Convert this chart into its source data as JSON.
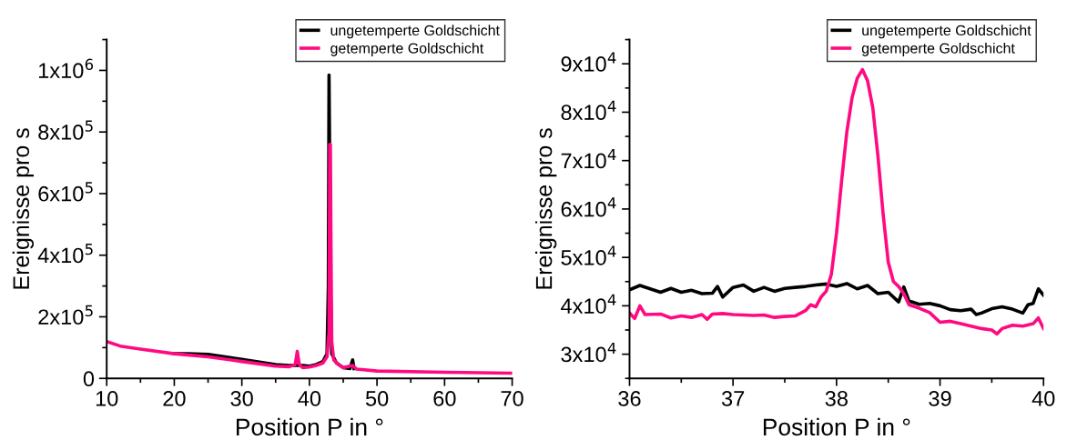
{
  "chart_data": [
    {
      "type": "line",
      "xlabel": "Position P in °",
      "ylabel": "Ereignisse pro s",
      "xlim": [
        10,
        70
      ],
      "xticks": [
        10,
        20,
        30,
        40,
        50,
        60,
        70
      ],
      "ylim": [
        0,
        1100000
      ],
      "yticks": [
        0,
        {
          "value": 200000,
          "label": "2x10$^{5}$"
        },
        {
          "value": 400000,
          "label": "4x10$^{5}$"
        },
        {
          "value": 600000,
          "label": "6x10$^{5}$"
        },
        {
          "value": 800000,
          "label": "8x10$^{5}$"
        },
        {
          "value": 1000000,
          "label": "1x10$^{6}$"
        }
      ],
      "legend": "top right",
      "grid": false,
      "marker": "none",
      "line_style": "solid",
      "series": [
        {
          "name": "ungetemperte Goldschicht",
          "color": "#000000",
          "x": [
            20,
            22,
            25,
            30,
            35,
            37,
            38,
            39,
            40,
            41,
            42,
            42.6,
            42.8,
            42.9,
            43.0,
            43.1,
            43.3,
            44,
            45,
            46,
            46.4,
            46.6
          ],
          "values": [
            80000,
            80000,
            78000,
            62000,
            45000,
            42000,
            43000,
            42000,
            40000,
            45000,
            55000,
            80000,
            300000,
            985000,
            700000,
            300000,
            80000,
            50000,
            35000,
            32000,
            60000,
            32000
          ]
        },
        {
          "name": "getemperte Goldschicht",
          "color": "#ff0a80",
          "x": [
            10,
            12,
            15,
            20,
            25,
            30,
            35,
            37,
            37.9,
            38.2,
            38.5,
            39,
            40,
            41,
            42,
            42.6,
            42.9,
            43.0,
            43.1,
            43.2,
            43.3,
            43.6,
            44.3,
            45,
            46.4,
            47,
            50,
            60,
            70
          ],
          "values": [
            120000,
            105000,
            95000,
            80000,
            70000,
            55000,
            40000,
            38000,
            45000,
            88000,
            45000,
            35000,
            37000,
            42000,
            50000,
            70000,
            150000,
            760000,
            760000,
            400000,
            120000,
            60000,
            45000,
            35000,
            42000,
            30000,
            24000,
            20000,
            17000
          ]
        }
      ]
    },
    {
      "type": "line",
      "xlabel": "Position P in °",
      "ylabel": "Ereignisse pro s",
      "xlim": [
        36,
        40
      ],
      "xticks": [
        36,
        37,
        38,
        39,
        40
      ],
      "ylim": [
        25000,
        95000
      ],
      "yticks": [
        {
          "value": 30000,
          "label": "3x10$^{4}$"
        },
        {
          "value": 40000,
          "label": "4x10$^{4}$"
        },
        {
          "value": 50000,
          "label": "5x10$^{4}$"
        },
        {
          "value": 60000,
          "label": "6x10$^{4}$"
        },
        {
          "value": 70000,
          "label": "7x10$^{4}$"
        },
        {
          "value": 80000,
          "label": "8x10$^{4}$"
        },
        {
          "value": 90000,
          "label": "9x10$^{4}$"
        }
      ],
      "legend": "top right",
      "grid": false,
      "marker": "none",
      "line_style": "solid",
      "series": [
        {
          "name": "ungetemperte Goldschicht",
          "color": "#000000",
          "x": [
            36.0,
            36.1,
            36.2,
            36.3,
            36.4,
            36.5,
            36.6,
            36.7,
            36.8,
            36.85,
            36.9,
            37.0,
            37.1,
            37.2,
            37.3,
            37.4,
            37.5,
            37.6,
            37.7,
            37.8,
            37.9,
            38.0,
            38.1,
            38.2,
            38.3,
            38.4,
            38.5,
            38.6,
            38.65,
            38.7,
            38.8,
            38.9,
            39.0,
            39.1,
            39.2,
            39.3,
            39.35,
            39.4,
            39.5,
            39.6,
            39.7,
            39.8,
            39.85,
            39.9,
            39.95,
            40.0
          ],
          "values": [
            43300,
            44200,
            43500,
            42800,
            43600,
            42800,
            43200,
            42500,
            42600,
            44000,
            41800,
            43800,
            44300,
            43000,
            43800,
            43000,
            43600,
            43800,
            44000,
            44300,
            44500,
            44000,
            44600,
            43500,
            44200,
            42500,
            42800,
            40800,
            43900,
            41000,
            40300,
            40500,
            40000,
            39200,
            39000,
            39300,
            38200,
            38500,
            39400,
            39800,
            39300,
            38500,
            40200,
            40500,
            43500,
            42200
          ]
        },
        {
          "name": "getemperte Goldschicht",
          "color": "#ff0a80",
          "x": [
            36.0,
            36.05,
            36.1,
            36.15,
            36.3,
            36.4,
            36.5,
            36.6,
            36.7,
            36.75,
            36.8,
            36.9,
            37.0,
            37.1,
            37.2,
            37.3,
            37.4,
            37.5,
            37.6,
            37.7,
            37.75,
            37.8,
            37.85,
            37.9,
            37.95,
            38.0,
            38.05,
            38.1,
            38.15,
            38.2,
            38.25,
            38.3,
            38.35,
            38.4,
            38.45,
            38.5,
            38.55,
            38.6,
            38.65,
            38.7,
            38.8,
            38.9,
            39.0,
            39.1,
            39.2,
            39.3,
            39.4,
            39.5,
            39.55,
            39.6,
            39.7,
            39.8,
            39.9,
            39.95,
            40.0
          ],
          "values": [
            38500,
            37400,
            40000,
            38200,
            38300,
            37500,
            37900,
            37600,
            38200,
            37200,
            38300,
            38400,
            38200,
            38100,
            38000,
            38100,
            37600,
            37800,
            37900,
            39000,
            40200,
            39800,
            41800,
            43000,
            46500,
            55000,
            66000,
            76000,
            83000,
            87000,
            88800,
            86500,
            81000,
            71000,
            59000,
            49000,
            45000,
            44000,
            42500,
            40200,
            39500,
            38600,
            36600,
            36800,
            36300,
            35800,
            35300,
            35000,
            34200,
            35300,
            36000,
            35800,
            36300,
            37500,
            35300
          ]
        }
      ]
    }
  ]
}
